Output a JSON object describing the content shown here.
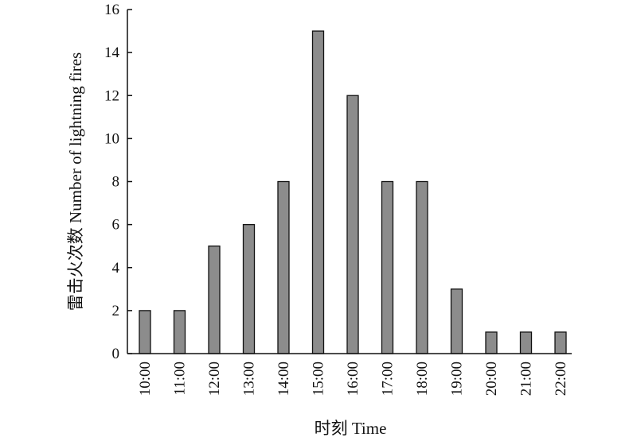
{
  "chart_data": {
    "type": "bar",
    "title": "",
    "xlabel": "时刻 Time",
    "ylabel": "雷击火次数 Number of lightning fires",
    "categories": [
      "10:00",
      "11:00",
      "12:00",
      "13:00",
      "14:00",
      "15:00",
      "16:00",
      "17:00",
      "18:00",
      "19:00",
      "20:00",
      "21:00",
      "22:00"
    ],
    "values": [
      2,
      2,
      5,
      6,
      8,
      15,
      12,
      8,
      8,
      3,
      1,
      1,
      1
    ],
    "ylim": [
      0,
      16
    ],
    "yticks": [
      0,
      2,
      4,
      6,
      8,
      10,
      12,
      14,
      16
    ],
    "grid": false,
    "legend": "none",
    "bar_color": "#8c8c8c",
    "bar_edge_color": "#111111"
  }
}
